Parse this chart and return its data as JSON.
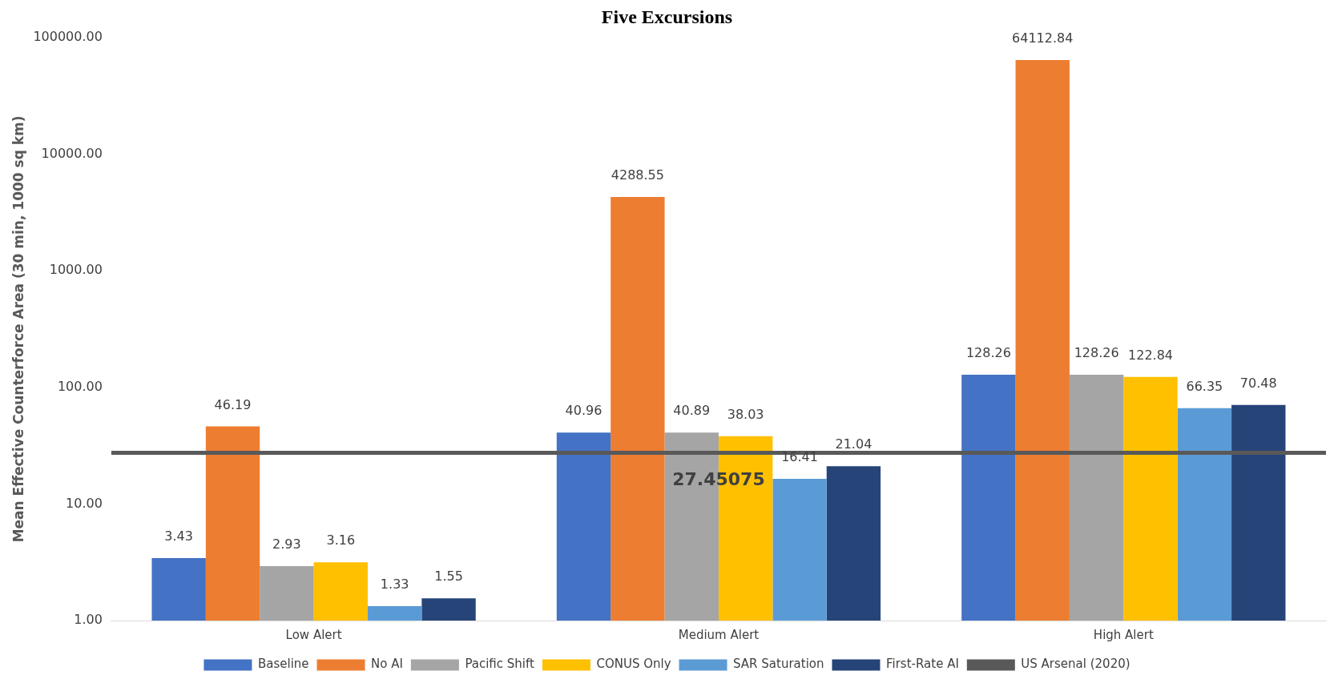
{
  "chart_data": {
    "type": "bar",
    "title": "Five Excursions",
    "ylabel": "Mean Effective Counterforce Area (30 min, 1000 sq km)",
    "categories": [
      "Low Alert",
      "Medium Alert",
      "High Alert"
    ],
    "series": [
      {
        "name": "Baseline",
        "color": "#4472c4",
        "values": [
          3.43,
          40.96,
          128.26
        ]
      },
      {
        "name": "No AI",
        "color": "#ed7d31",
        "values": [
          46.19,
          4288.55,
          64112.84
        ]
      },
      {
        "name": "Pacific Shift",
        "color": "#a5a5a5",
        "values": [
          2.93,
          40.89,
          128.26
        ]
      },
      {
        "name": "CONUS Only",
        "color": "#ffc000",
        "values": [
          3.16,
          38.03,
          122.84
        ]
      },
      {
        "name": "SAR Saturation",
        "color": "#5b9bd5",
        "values": [
          1.33,
          16.41,
          66.35
        ]
      },
      {
        "name": "First-Rate AI",
        "color": "#264478",
        "values": [
          1.55,
          21.04,
          70.48
        ]
      }
    ],
    "log": "y",
    "ylim": [
      1,
      100000
    ],
    "yticks": [
      {
        "value": 1,
        "label": "1.00"
      },
      {
        "value": 10,
        "label": "10.00"
      },
      {
        "value": 100,
        "label": "100.00"
      },
      {
        "value": 1000,
        "label": "1000.00"
      },
      {
        "value": 10000,
        "label": "10000.00"
      },
      {
        "value": 100000,
        "label": "100000.00"
      }
    ],
    "ref_lines": [
      {
        "axis": "y",
        "value": 27.45075,
        "label": "US Arsenal (2020)",
        "color": "#595959"
      }
    ],
    "annotations": [
      {
        "text": "27.45075",
        "x": "Medium Alert",
        "y": 27.45075
      }
    ],
    "data_labels": true,
    "grid": false,
    "legend": "bottom"
  }
}
